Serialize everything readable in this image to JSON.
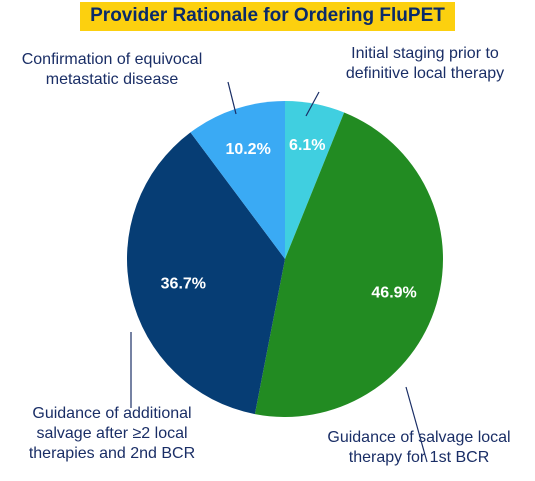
{
  "chart_data": {
    "type": "pie",
    "title": "Provider Rationale for Ordering FluPET",
    "slices": [
      {
        "label": [
          "Initial staging prior to",
          "definitive local therapy"
        ],
        "value": 6.1,
        "display": "6.1%",
        "color": "#40cfe0"
      },
      {
        "label": [
          "Guidance of salvage local",
          "therapy for 1st BCR"
        ],
        "value": 46.9,
        "display": "46.9%",
        "color": "#228b22"
      },
      {
        "label": [
          "Guidance of additional",
          "salvage after ≥2 local",
          "therapies and 2nd BCR"
        ],
        "value": 36.7,
        "display": "36.7%",
        "color": "#063d74"
      },
      {
        "label": [
          "Confirmation of equivocal",
          "metastatic disease"
        ],
        "value": 10.2,
        "display": "10.2%",
        "color": "#3aaaf4"
      }
    ]
  }
}
